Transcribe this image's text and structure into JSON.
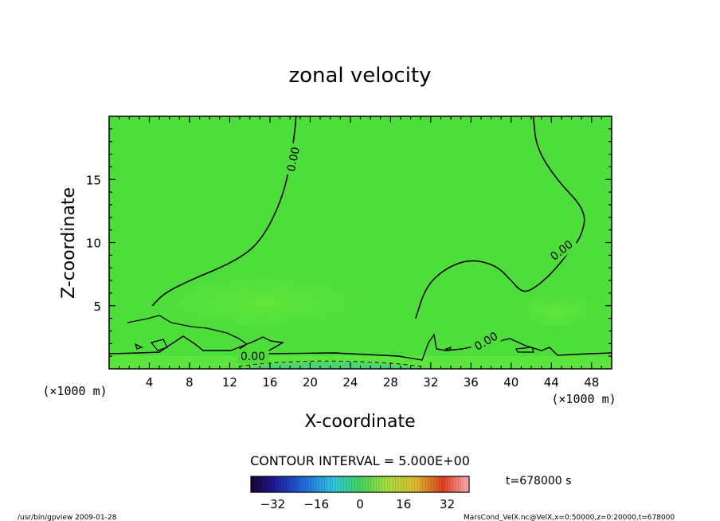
{
  "chart_data": {
    "type": "heatmap",
    "title": "zonal velocity",
    "xlabel": "X-coordinate",
    "ylabel": "Z-coordinate",
    "x_unit_label": "(×1000 m)",
    "z_unit_label": "(×1000 m)",
    "xlim": [
      0,
      50
    ],
    "ylim": [
      0,
      20
    ],
    "x_ticks": [
      4,
      8,
      12,
      16,
      20,
      24,
      28,
      32,
      36,
      40,
      44,
      48
    ],
    "y_ticks": [
      5,
      10,
      15
    ],
    "grid": false,
    "contour_interval_text": "CONTOUR INTERVAL = 5.000E+00",
    "contour_labels": [
      "0.00",
      "0.00",
      "0.00",
      "0.00"
    ],
    "zero_contour_main": [
      [
        4.3,
        5.0
      ],
      [
        5.5,
        6.0
      ],
      [
        8.0,
        7.0
      ],
      [
        12.5,
        8.5
      ],
      [
        15.0,
        10.0
      ],
      [
        17.0,
        13.0
      ],
      [
        18.0,
        16.0
      ],
      [
        18.5,
        19.0
      ],
      [
        18.6,
        20.0
      ]
    ],
    "zero_contour_right": [
      [
        30.5,
        4.0
      ],
      [
        31.5,
        6.5
      ],
      [
        33.5,
        8.0
      ],
      [
        36.0,
        8.7
      ],
      [
        38.5,
        8.2
      ],
      [
        40.0,
        7.0
      ],
      [
        41.0,
        6.1
      ],
      [
        42.0,
        6.2
      ],
      [
        44.0,
        7.5
      ],
      [
        46.0,
        9.5
      ],
      [
        47.0,
        10.5
      ],
      [
        47.5,
        12.5
      ],
      [
        44.5,
        15.0
      ],
      [
        42.5,
        17.5
      ],
      [
        42.2,
        20.0
      ]
    ],
    "color_scale": {
      "ticks": [
        -32,
        -16,
        0,
        16,
        32
      ],
      "min": -40,
      "max": 40
    },
    "annotations": {
      "time": "t=678000 s",
      "footer_left": "/usr/bin/gpview  2009-01-28",
      "footer_right": "MarsCond_VelX.nc@VelX,x=0:50000,z=0:20000,t=678000"
    },
    "colors": {
      "field": "#4dde3c",
      "field_high": "#5ce63d",
      "field_low": "#29d45c",
      "contour": "#000000"
    }
  }
}
